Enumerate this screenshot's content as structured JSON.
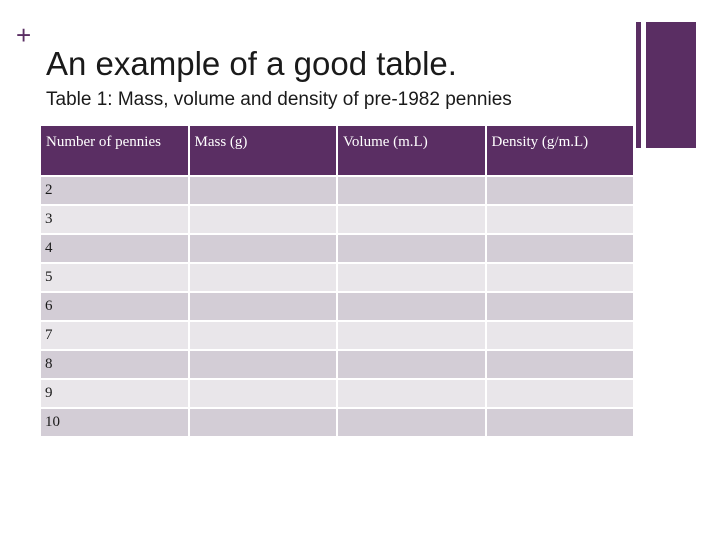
{
  "slide": {
    "title": "An example of a good table.",
    "caption": "Table 1: Mass, volume and density of pre-1982 pennies",
    "accent_color": "#5a2e63",
    "bullet_glyph": "+"
  },
  "table": {
    "headers": [
      "Number of pennies",
      "Mass (g)",
      "Volume (m.L)",
      "Density (g/m.L)"
    ],
    "rows": [
      [
        "2",
        "",
        "",
        ""
      ],
      [
        "3",
        "",
        "",
        ""
      ],
      [
        "4",
        "",
        "",
        ""
      ],
      [
        "5",
        "",
        "",
        ""
      ],
      [
        "6",
        "",
        "",
        ""
      ],
      [
        "7",
        "",
        "",
        ""
      ],
      [
        "8",
        "",
        "",
        ""
      ],
      [
        "9",
        "",
        "",
        ""
      ],
      [
        "10",
        "",
        "",
        ""
      ]
    ]
  }
}
